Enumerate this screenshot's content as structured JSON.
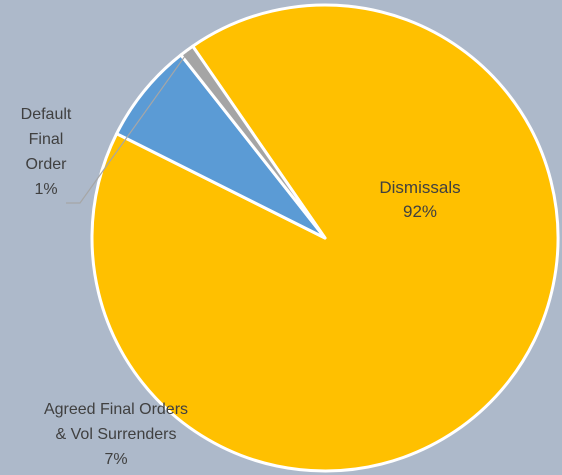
{
  "chart_data": {
    "type": "pie",
    "title": "",
    "slices": [
      {
        "name": "Dismissals",
        "value": 92,
        "label_lines": [
          "Dismissals"
        ],
        "pct_label": "92%",
        "color": "#ffc000"
      },
      {
        "name": "Agreed Final Orders & Vol Surrenders",
        "value": 7,
        "label_lines": [
          "Agreed Final Orders",
          "& Vol Surrenders"
        ],
        "pct_label": "7%",
        "color": "#5b9bd5"
      },
      {
        "name": "Default Final Order",
        "value": 1,
        "label_lines": [
          "Default",
          "Final",
          "Order"
        ],
        "pct_label": "1%",
        "color": "#a5a5a5"
      }
    ],
    "slice_border_color": "#ffffff",
    "legend": "none",
    "data_labels": "category name and percentage"
  }
}
